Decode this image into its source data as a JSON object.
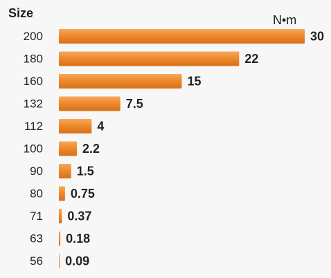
{
  "chart_data": {
    "type": "bar",
    "orientation": "horizontal",
    "y_label": "Size",
    "x_label": "N•m",
    "categories": [
      "200",
      "180",
      "160",
      "132",
      "112",
      "100",
      "90",
      "80",
      "71",
      "63",
      "56"
    ],
    "values": [
      30,
      22,
      15,
      7.5,
      4,
      2.2,
      1.5,
      0.75,
      0.37,
      0.18,
      0.09
    ],
    "color": "#ee8a2c",
    "xlim": [
      0,
      30
    ]
  }
}
